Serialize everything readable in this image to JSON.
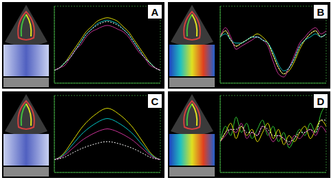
{
  "chart_data": [
    {
      "type": "line",
      "title": "A",
      "grid": true,
      "tick_labels": false,
      "x": [
        0,
        1,
        2,
        3,
        4,
        5,
        6,
        7,
        8,
        9,
        10,
        11,
        12,
        13,
        14,
        15,
        16,
        17,
        18,
        19,
        20
      ],
      "xlim": [
        0,
        20
      ],
      "xticks": [
        0,
        5,
        10,
        15,
        20
      ],
      "ylim": [
        -5,
        25
      ],
      "yticks": [
        -5,
        0,
        5,
        10,
        15,
        20,
        25
      ],
      "series": [
        {
          "color": "#e6e600",
          "values": [
            0,
            1,
            3,
            6,
            9,
            12,
            15,
            17,
            19,
            20,
            20.5,
            20,
            19,
            17,
            15,
            12,
            9,
            6,
            3,
            1,
            0
          ]
        },
        {
          "color": "#00cccc",
          "values": [
            0,
            1,
            3,
            5,
            8,
            11,
            14,
            16,
            18,
            19,
            19.5,
            19,
            18,
            16,
            14,
            11,
            8,
            5,
            3,
            1,
            0
          ]
        },
        {
          "color": "#cc3399",
          "values": [
            0,
            1,
            2,
            5,
            8,
            10,
            13,
            15,
            16,
            17,
            17.5,
            17,
            16,
            15,
            13,
            10,
            7,
            5,
            2,
            1,
            0
          ]
        },
        {
          "color": "#ffffff",
          "line_style": "dotted",
          "values": [
            0,
            1,
            3,
            5,
            8,
            11,
            14,
            16,
            17.5,
            18.5,
            19,
            18.5,
            17.5,
            16,
            14,
            11,
            8,
            5,
            3,
            1,
            0
          ]
        }
      ]
    },
    {
      "type": "line",
      "title": "B",
      "grid": true,
      "tick_labels": false,
      "x": [
        0,
        1,
        2,
        3,
        4,
        5,
        6,
        7,
        8,
        9,
        10,
        11,
        12,
        13,
        14,
        15,
        16,
        17,
        18,
        19,
        20
      ],
      "xlim": [
        0,
        20
      ],
      "xticks": [
        0,
        5,
        10,
        15,
        20
      ],
      "ylim": [
        -15,
        10
      ],
      "yticks": [
        -15,
        -10,
        -5,
        0,
        5,
        10
      ],
      "series": [
        {
          "color": "#e6e600",
          "values": [
            0,
            2,
            -1,
            -3,
            -2,
            -1,
            0,
            1,
            0,
            -2,
            -6,
            -10,
            -12,
            -11,
            -8,
            -4,
            -1,
            1,
            2,
            0,
            1
          ]
        },
        {
          "color": "#cc3399",
          "values": [
            0,
            3,
            0,
            -4,
            -3,
            -2,
            -1,
            0,
            -1,
            -3,
            -8,
            -12,
            -13,
            -10,
            -6,
            -2,
            0,
            2,
            3,
            1,
            2
          ]
        },
        {
          "color": "#00cccc",
          "values": [
            0,
            1,
            -1,
            -2,
            -2,
            -1,
            0,
            0,
            -1,
            -2,
            -5,
            -9,
            -11,
            -10,
            -7,
            -3,
            -1,
            0,
            1,
            0,
            1
          ]
        },
        {
          "color": "#ffffff",
          "line_style": "dotted",
          "values": [
            0,
            2,
            -1,
            -3,
            -2,
            -1,
            0,
            0,
            -1,
            -2,
            -6,
            -10,
            -12,
            -10,
            -7,
            -3,
            -1,
            1,
            2,
            0,
            1
          ]
        }
      ]
    },
    {
      "type": "line",
      "title": "C",
      "grid": true,
      "tick_labels": false,
      "x": [
        0,
        1,
        2,
        3,
        4,
        5,
        6,
        7,
        8,
        9,
        10,
        11,
        12,
        13,
        14,
        15,
        16,
        17,
        18,
        19,
        20
      ],
      "xlim": [
        0,
        20
      ],
      "xticks": [
        0,
        5,
        10,
        15,
        20
      ],
      "ylim": [
        -5,
        25
      ],
      "yticks": [
        -5,
        0,
        5,
        10,
        15,
        20,
        25
      ],
      "series": [
        {
          "color": "#e6e600",
          "values": [
            0,
            1,
            3,
            6,
            9,
            12,
            14.4,
            16.4,
            18,
            19.4,
            20,
            19.4,
            18,
            16.4,
            14.4,
            12,
            9,
            6,
            3,
            1,
            0
          ]
        },
        {
          "color": "#00cccc",
          "values": [
            0,
            0.8,
            2.4,
            4.8,
            7.2,
            9.6,
            11.5,
            13.1,
            14.4,
            15.5,
            16,
            15.5,
            14.4,
            13.1,
            11.5,
            9.6,
            7.2,
            4.8,
            2.4,
            0.8,
            0
          ]
        },
        {
          "color": "#cc3399",
          "values": [
            0,
            0.6,
            1.8,
            3.6,
            5.4,
            7.2,
            8.6,
            9.8,
            10.8,
            11.6,
            12,
            11.6,
            10.8,
            9.8,
            8.6,
            7.2,
            5.4,
            3.6,
            1.8,
            0.6,
            0
          ]
        },
        {
          "color": "#ffffff",
          "line_style": "dotted",
          "values": [
            0,
            0.4,
            1,
            2.1,
            3.2,
            4.2,
            5,
            5.7,
            6.3,
            6.8,
            7,
            6.8,
            6.3,
            5.7,
            5,
            4.2,
            3.2,
            2.1,
            1,
            0.4,
            0
          ]
        }
      ]
    },
    {
      "type": "line",
      "title": "D",
      "grid": true,
      "tick_labels": false,
      "x": [
        0,
        1,
        2,
        3,
        4,
        5,
        6,
        7,
        8,
        9,
        10,
        11,
        12,
        13,
        14,
        15,
        16,
        17,
        18,
        19,
        20
      ],
      "xlim": [
        0,
        20
      ],
      "xticks": [
        0,
        5,
        10,
        15,
        20
      ],
      "ylim": [
        -10,
        15
      ],
      "yticks": [
        -10,
        -5,
        0,
        5,
        10,
        15
      ],
      "series": [
        {
          "color": "#33cc33",
          "values": [
            0,
            5,
            2,
            8,
            3,
            6,
            1,
            4,
            7,
            2,
            5,
            0,
            3,
            -2,
            1,
            4,
            2,
            6,
            3,
            9,
            12
          ]
        },
        {
          "color": "#e6e600",
          "values": [
            0,
            3,
            6,
            1,
            5,
            2,
            4,
            0,
            3,
            6,
            1,
            4,
            -1,
            2,
            0,
            3,
            5,
            1,
            4,
            7,
            5
          ]
        },
        {
          "color": "#cc3399",
          "values": [
            0,
            2,
            4,
            3,
            6,
            1,
            3,
            2,
            5,
            3,
            0,
            2,
            1,
            -1,
            2,
            1,
            3,
            4,
            2,
            5,
            3
          ]
        },
        {
          "color": "#ffffff",
          "line_style": "dotted",
          "values": [
            0,
            3,
            4,
            4,
            5,
            3,
            3,
            2,
            5,
            4,
            2,
            2,
            1,
            0,
            1,
            3,
            3,
            4,
            3,
            7,
            7
          ]
        }
      ]
    }
  ]
}
